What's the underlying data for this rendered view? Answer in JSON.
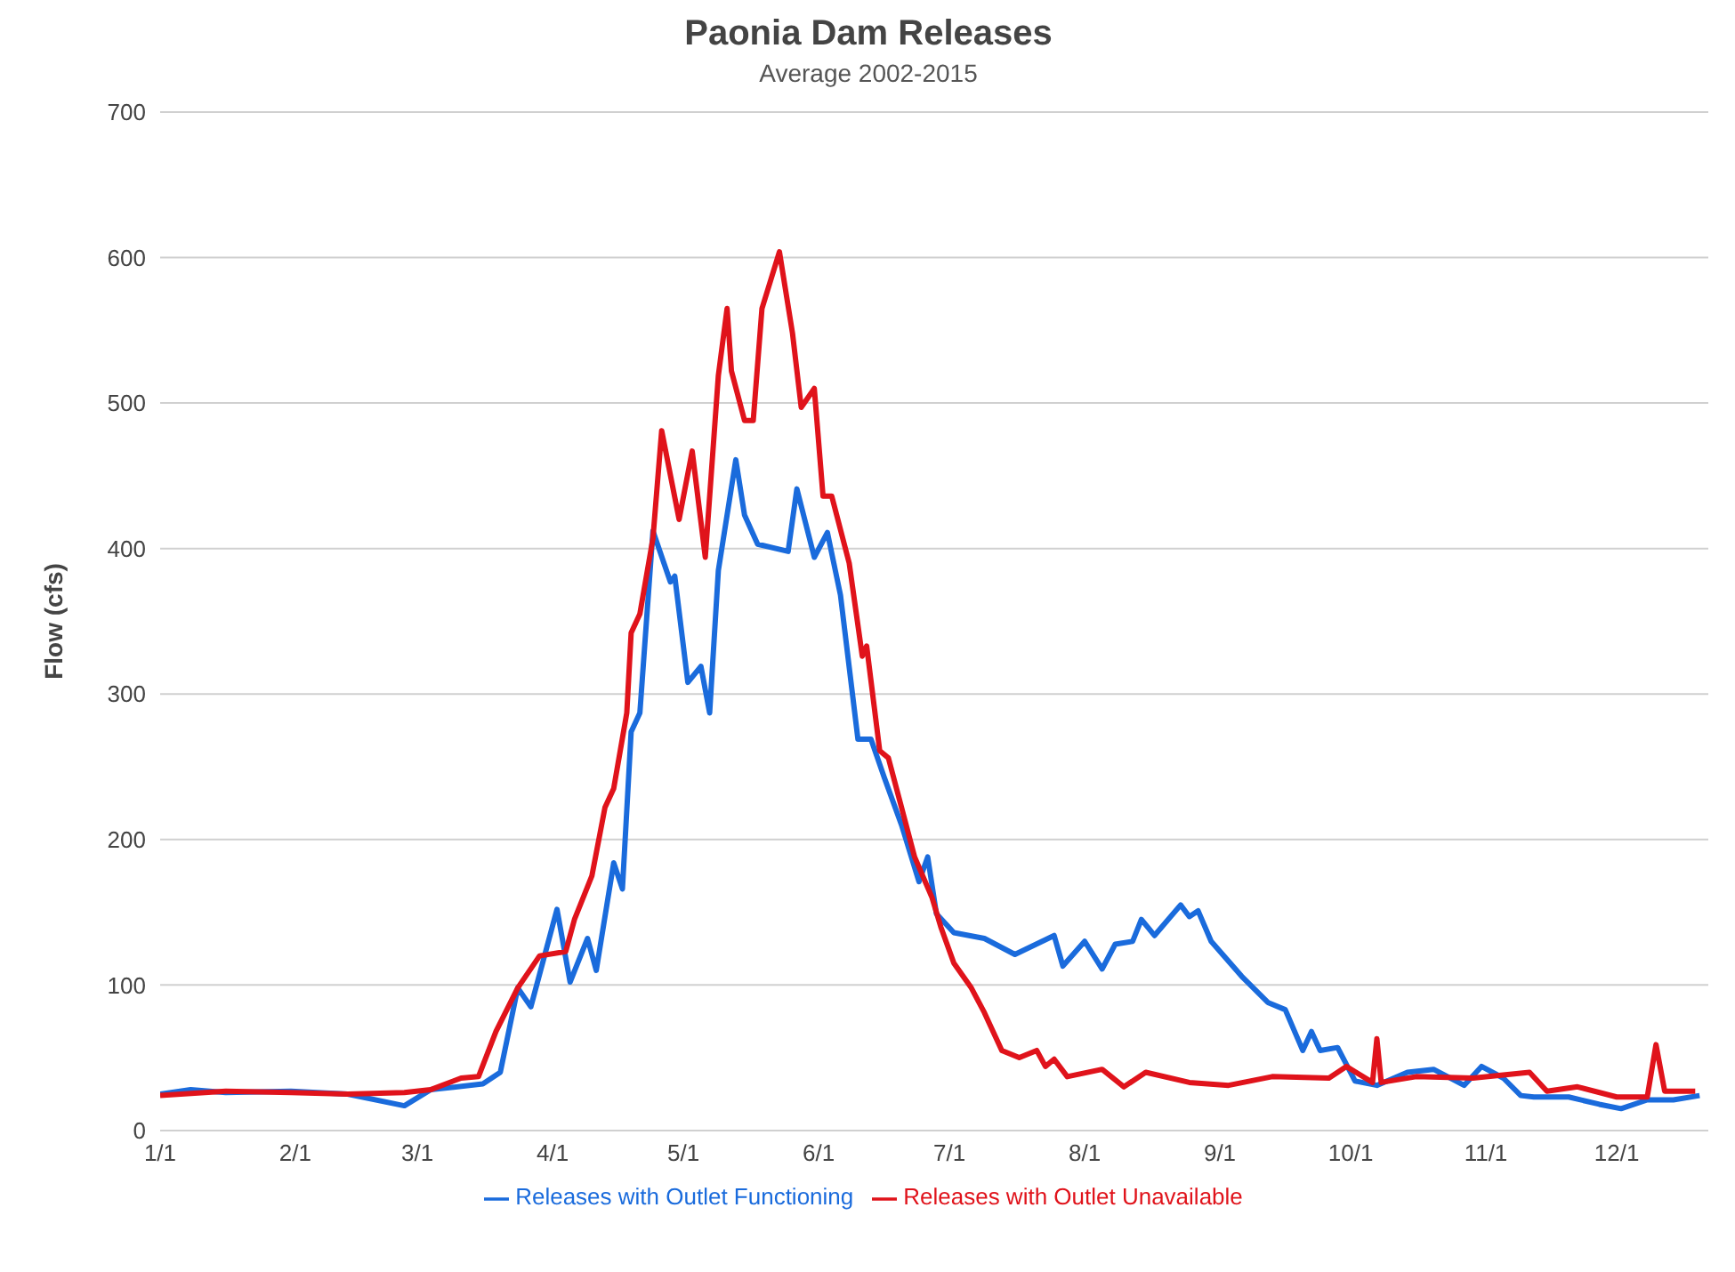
{
  "chart_data": {
    "type": "line",
    "title": "Paonia Dam Releases",
    "subtitle": "Average 2002-2015",
    "ylabel": "Flow (cfs)",
    "xlim": [
      "--01-01",
      "--12-22"
    ],
    "xticks": [
      {
        "value": "--01-01",
        "label": "1/1"
      },
      {
        "value": "--02-01",
        "label": "2/1"
      },
      {
        "value": "--03-01",
        "label": "3/1"
      },
      {
        "value": "--04-01",
        "label": "4/1"
      },
      {
        "value": "--05-01",
        "label": "5/1"
      },
      {
        "value": "--06-01",
        "label": "6/1"
      },
      {
        "value": "--07-01",
        "label": "7/1"
      },
      {
        "value": "--08-01",
        "label": "8/1"
      },
      {
        "value": "--09-01",
        "label": "9/1"
      },
      {
        "value": "--10-01",
        "label": "10/1"
      },
      {
        "value": "--11-01",
        "label": "11/1"
      },
      {
        "value": "--12-01",
        "label": "12/1"
      }
    ],
    "ylim": [
      0,
      700
    ],
    "yticks": [
      0,
      100,
      200,
      300,
      400,
      500,
      600,
      700
    ],
    "grid": "y",
    "legend": "bottom",
    "marker": "none",
    "line_style": "solid",
    "series": [
      {
        "name": "Releases with Outlet Functioning",
        "color": "#1a6bdc",
        "x": [
          "--01-01",
          "--01-08",
          "--01-16",
          "--01-31",
          "--02-13",
          "--02-26",
          "--03-04",
          "--03-16",
          "--03-20",
          "--03-24",
          "--03-27",
          "--04-02",
          "--04-05",
          "--04-09",
          "--04-11",
          "--04-15",
          "--04-17",
          "--04-19",
          "--04-21",
          "--04-24",
          "--04-28",
          "--04-29",
          "--05-02",
          "--05-05",
          "--05-07",
          "--05-09",
          "--05-13",
          "--05-15",
          "--05-18",
          "--05-25",
          "--05-27",
          "--05-31",
          "--06-03",
          "--06-06",
          "--06-10",
          "--06-13",
          "--06-16",
          "--06-20",
          "--06-24",
          "--06-26",
          "--06-28",
          "--07-02",
          "--07-09",
          "--07-16",
          "--07-25",
          "--07-27",
          "--08-01",
          "--08-05",
          "--08-08",
          "--08-12",
          "--08-14",
          "--08-17",
          "--08-23",
          "--08-25",
          "--08-27",
          "--08-30",
          "--09-06",
          "--09-12",
          "--09-16",
          "--09-20",
          "--09-22",
          "--09-24",
          "--09-28",
          "--10-02",
          "--10-07",
          "--10-14",
          "--10-20",
          "--10-27",
          "--10-31",
          "--11-05",
          "--11-09",
          "--11-12",
          "--11-20",
          "--11-27",
          "--12-02",
          "--12-08",
          "--12-14",
          "--12-20"
        ],
        "values": [
          25,
          28,
          26,
          27,
          25,
          17,
          28,
          32,
          40,
          98,
          85,
          152,
          102,
          132,
          110,
          184,
          166,
          274,
          287,
          412,
          377,
          381,
          308,
          319,
          287,
          385,
          461,
          423,
          403,
          398,
          441,
          394,
          411,
          368,
          269,
          269,
          243,
          210,
          171,
          188,
          149,
          136,
          132,
          121,
          134,
          113,
          130,
          111,
          128,
          130,
          145,
          134,
          155,
          147,
          151,
          130,
          106,
          88,
          83,
          55,
          68,
          55,
          57,
          34,
          31,
          40,
          42,
          31,
          44,
          36,
          24,
          23,
          23,
          18,
          15,
          21,
          21,
          24
        ]
      },
      {
        "name": "Releases with Outlet Unavailable",
        "color": "#e0131b",
        "x": [
          "--01-01",
          "--01-16",
          "--01-31",
          "--02-13",
          "--02-26",
          "--03-04",
          "--03-11",
          "--03-15",
          "--03-19",
          "--03-24",
          "--03-29",
          "--04-04",
          "--04-06",
          "--04-10",
          "--04-13",
          "--04-15",
          "--04-18",
          "--04-19",
          "--04-21",
          "--04-24",
          "--04-26",
          "--04-30",
          "--05-03",
          "--05-06",
          "--05-09",
          "--05-11",
          "--05-12",
          "--05-15",
          "--05-17",
          "--05-19",
          "--05-23",
          "--05-26",
          "--05-28",
          "--05-31",
          "--06-02",
          "--06-04",
          "--06-08",
          "--06-11",
          "--06-12",
          "--06-15",
          "--06-17",
          "--06-23",
          "--06-27",
          "--06-29",
          "--07-02",
          "--07-06",
          "--07-09",
          "--07-13",
          "--07-17",
          "--07-21",
          "--07-23",
          "--07-25",
          "--07-28",
          "--08-05",
          "--08-10",
          "--08-15",
          "--08-25",
          "--09-03",
          "--09-13",
          "--09-26",
          "--09-30",
          "--10-06",
          "--10-07",
          "--10-08",
          "--10-16",
          "--10-29",
          "--11-11",
          "--11-15",
          "--11-22",
          "--12-01",
          "--12-08",
          "--12-10",
          "--12-12",
          "--12-19"
        ],
        "values": [
          24,
          27,
          26,
          25,
          26,
          28,
          36,
          37,
          68,
          98,
          120,
          123,
          145,
          175,
          222,
          235,
          287,
          342,
          355,
          407,
          481,
          420,
          467,
          394,
          519,
          565,
          522,
          488,
          488,
          565,
          604,
          548,
          497,
          510,
          436,
          436,
          390,
          326,
          333,
          261,
          256,
          188,
          160,
          140,
          115,
          98,
          81,
          55,
          50,
          55,
          44,
          49,
          37,
          42,
          30,
          40,
          33,
          31,
          37,
          36,
          44,
          33,
          63,
          33,
          37,
          36,
          40,
          27,
          30,
          23,
          23,
          59,
          27,
          27
        ]
      }
    ]
  }
}
